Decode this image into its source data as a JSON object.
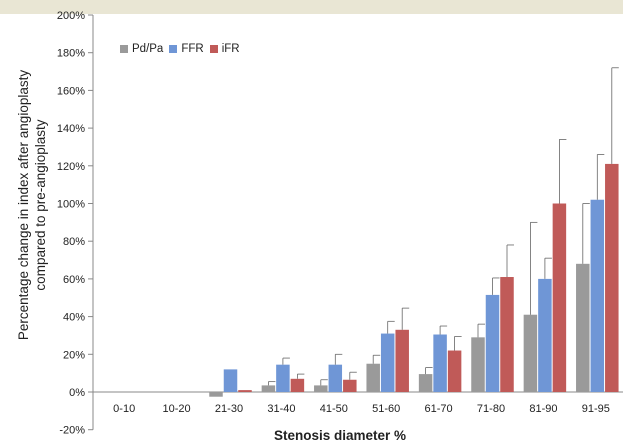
{
  "chart_data": {
    "type": "bar",
    "xlabel": "Stenosis diameter %",
    "ylabel_lines": [
      "Percentage change in  index after angioplasty",
      "compared to pre-angioplasty"
    ],
    "ylim": [
      -20,
      200
    ],
    "yticks": [
      "-20%",
      "0%",
      "20%",
      "40%",
      "60%",
      "80%",
      "100%",
      "120%",
      "140%",
      "160%",
      "180%",
      "200%"
    ],
    "ytick_values": [
      -20,
      0,
      20,
      40,
      60,
      80,
      100,
      120,
      140,
      160,
      180,
      200
    ],
    "categories": [
      "0-10",
      "10-20",
      "21-30",
      "31-40",
      "41-50",
      "51-60",
      "61-70",
      "71-80",
      "81-90",
      "91-95"
    ],
    "series": [
      {
        "name": "Pd/Pa",
        "color": "#9a9a9a",
        "values": [
          0,
          0,
          -2.5,
          3.5,
          3.5,
          15,
          9.5,
          29,
          41,
          68
        ],
        "err_upper": [
          null,
          null,
          null,
          5.5,
          6.5,
          19.5,
          13,
          36,
          90,
          100
        ]
      },
      {
        "name": "FFR",
        "color": "#6f96d6",
        "values": [
          0,
          0,
          12,
          14.5,
          14.5,
          31,
          30.5,
          51.5,
          60,
          102
        ],
        "err_upper": [
          null,
          null,
          null,
          18,
          20,
          37.5,
          35,
          60.5,
          71,
          126
        ]
      },
      {
        "name": "iFR",
        "color": "#c05a58",
        "values": [
          0,
          0,
          1,
          7,
          6.5,
          33,
          22,
          61,
          100,
          121
        ],
        "err_upper": [
          null,
          null,
          null,
          9.5,
          10.5,
          44.5,
          29.5,
          78,
          134,
          172
        ]
      }
    ],
    "legend_position": "top-left",
    "grid": false
  }
}
